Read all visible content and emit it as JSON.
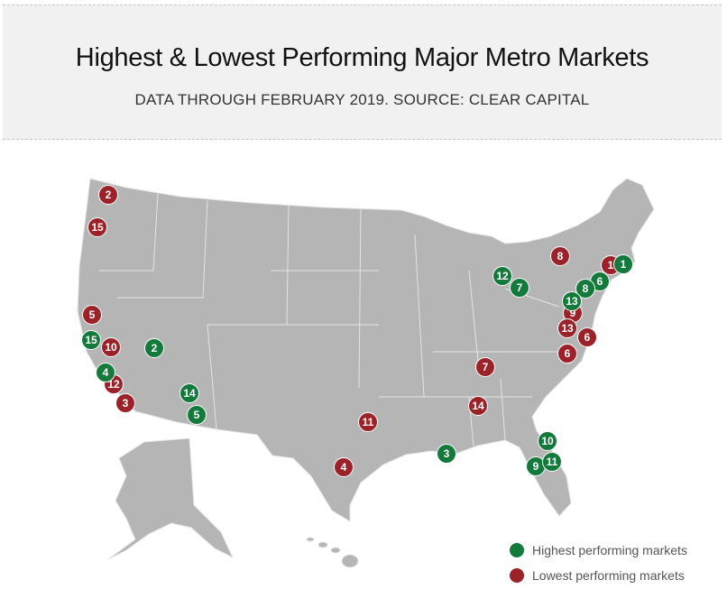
{
  "header": {
    "title": "Highest & Lowest Performing Major Metro Markets",
    "subtitle": "DATA THROUGH FEBRUARY 2019. SOURCE: CLEAR CAPITAL"
  },
  "colors": {
    "highest": "#137a3c",
    "lowest": "#9b2228",
    "land": "#b5b5b5"
  },
  "markers": [
    {
      "rank": "2",
      "type": "lowest"
    },
    {
      "rank": "15",
      "type": "lowest"
    },
    {
      "rank": "5",
      "type": "lowest"
    },
    {
      "rank": "10",
      "type": "lowest"
    },
    {
      "rank": "12",
      "type": "lowest"
    },
    {
      "rank": "3",
      "type": "lowest"
    },
    {
      "rank": "11",
      "type": "lowest"
    },
    {
      "rank": "4",
      "type": "lowest"
    },
    {
      "rank": "7",
      "type": "lowest"
    },
    {
      "rank": "14",
      "type": "lowest"
    },
    {
      "rank": "8",
      "type": "lowest"
    },
    {
      "rank": "1",
      "type": "lowest"
    },
    {
      "rank": "9",
      "type": "lowest"
    },
    {
      "rank": "13",
      "type": "lowest"
    },
    {
      "rank": "6",
      "type": "lowest"
    },
    {
      "rank": "6",
      "type": "lowest"
    },
    {
      "rank": "1",
      "type": "highest"
    },
    {
      "rank": "6",
      "type": "highest"
    },
    {
      "rank": "8",
      "type": "highest"
    },
    {
      "rank": "13",
      "type": "highest"
    },
    {
      "rank": "12",
      "type": "highest"
    },
    {
      "rank": "7",
      "type": "highest"
    },
    {
      "rank": "2",
      "type": "highest"
    },
    {
      "rank": "15",
      "type": "highest"
    },
    {
      "rank": "4",
      "type": "highest"
    },
    {
      "rank": "14",
      "type": "highest"
    },
    {
      "rank": "5",
      "type": "highest"
    },
    {
      "rank": "3",
      "type": "highest"
    },
    {
      "rank": "10",
      "type": "highest"
    },
    {
      "rank": "9",
      "type": "highest"
    },
    {
      "rank": "11",
      "type": "highest"
    }
  ],
  "legend": [
    {
      "label": "Highest performing markets",
      "type": "highest"
    },
    {
      "label": "Lowest performing markets",
      "type": "lowest"
    }
  ]
}
